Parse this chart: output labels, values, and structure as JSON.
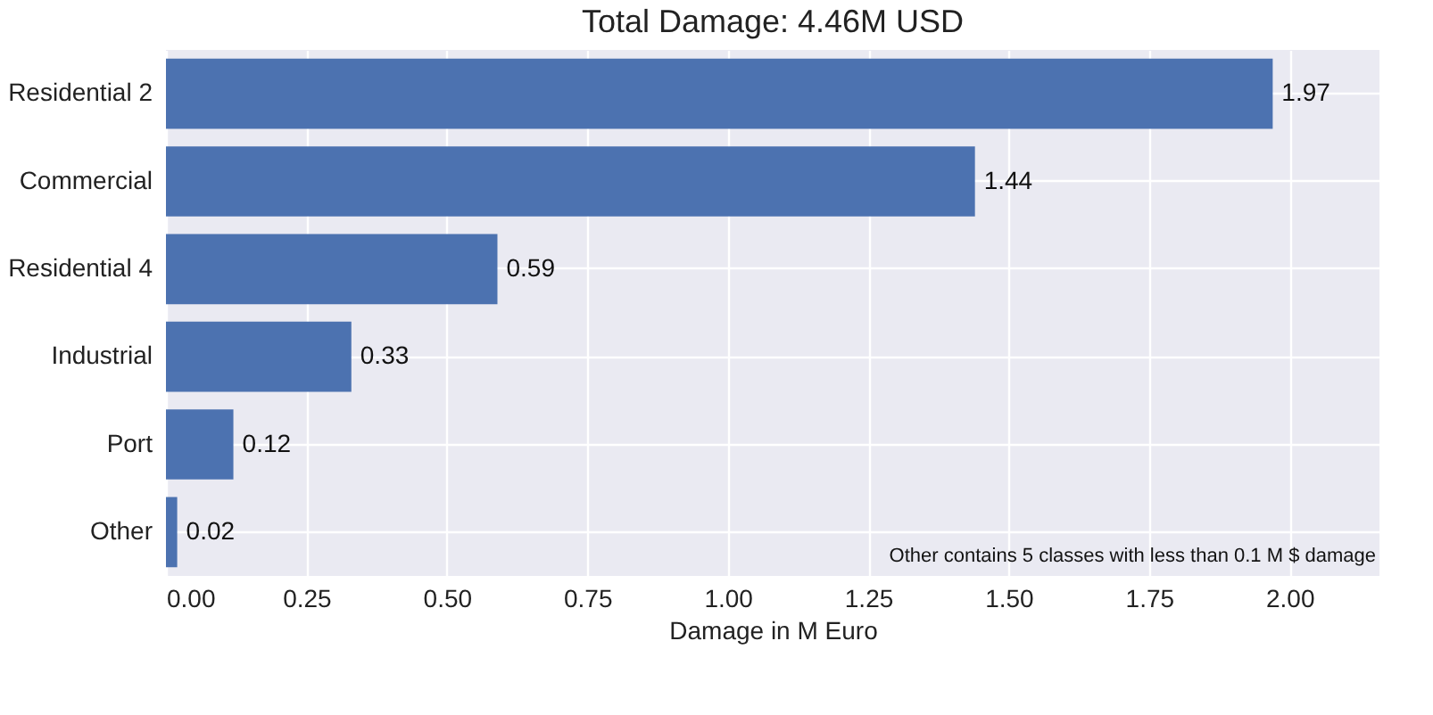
{
  "chart_data": {
    "type": "bar",
    "orientation": "horizontal",
    "title": "Total Damage: 4.46M USD",
    "xlabel": "Damage in M Euro",
    "categories": [
      "Residential 2",
      "Commercial",
      "Residential 4",
      "Industrial",
      "Port",
      "Other"
    ],
    "values": [
      1.97,
      1.44,
      0.59,
      0.33,
      0.12,
      0.02
    ],
    "color": "#4c72b0",
    "xlim": [
      0,
      2.16
    ],
    "xticks": [
      {
        "value": 0,
        "label": "0.00"
      },
      {
        "value": 0.25,
        "label": "0.25"
      },
      {
        "value": 0.5,
        "label": "0.50"
      },
      {
        "value": 0.75,
        "label": "0.75"
      },
      {
        "value": 1,
        "label": "1.00"
      },
      {
        "value": 1.25,
        "label": "1.25"
      },
      {
        "value": 1.5,
        "label": "1.50"
      },
      {
        "value": 1.75,
        "label": "1.75"
      },
      {
        "value": 2,
        "label": "2.00"
      }
    ],
    "grid": true,
    "data_labels": true,
    "annotations": [
      "Other contains 5 classes with less than 0.1 M $ damage"
    ]
  }
}
